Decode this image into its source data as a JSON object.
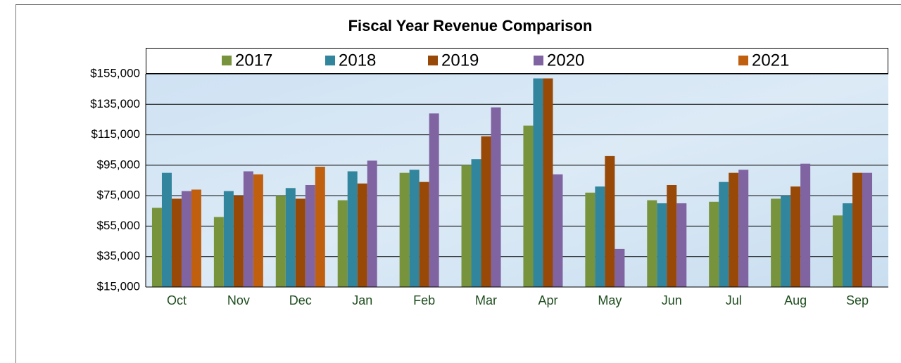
{
  "chart_data": {
    "type": "bar",
    "title": "Fiscal Year Revenue Comparison",
    "categories": [
      "Oct",
      "Nov",
      "Dec",
      "Jan",
      "Feb",
      "Mar",
      "Apr",
      "May",
      "Jun",
      "Jul",
      "Aug",
      "Sep"
    ],
    "series": [
      {
        "name": "2017",
        "color": "#77933c",
        "values": [
          67000,
          61000,
          75000,
          72000,
          90000,
          95000,
          121000,
          77000,
          72000,
          71000,
          73000,
          62000
        ]
      },
      {
        "name": "2018",
        "color": "#31859c",
        "values": [
          90000,
          78000,
          80000,
          91000,
          92000,
          99000,
          152000,
          81000,
          70000,
          84000,
          75000,
          70000
        ]
      },
      {
        "name": "2019",
        "color": "#984807",
        "values": [
          73000,
          75000,
          73000,
          83000,
          84000,
          114000,
          152000,
          101000,
          82000,
          90000,
          81000,
          90000
        ]
      },
      {
        "name": "2020",
        "color": "#8064a2",
        "values": [
          78000,
          91000,
          82000,
          98000,
          129000,
          133000,
          89000,
          40000,
          70000,
          92000,
          96000,
          90000
        ]
      },
      {
        "name": "2021",
        "color": "#c0600f",
        "values": [
          79000,
          89000,
          94000,
          null,
          null,
          null,
          null,
          null,
          null,
          null,
          null,
          null
        ]
      }
    ],
    "ylim": [
      15000,
      155000
    ],
    "yticks": [
      {
        "value": 15000,
        "label": "$15,000"
      },
      {
        "value": 35000,
        "label": "$35,000"
      },
      {
        "value": 55000,
        "label": "$55,000"
      },
      {
        "value": 75000,
        "label": "$75,000"
      },
      {
        "value": 95000,
        "label": "$95,000"
      },
      {
        "value": 115000,
        "label": "$115,000"
      },
      {
        "value": 135000,
        "label": "$135,000"
      },
      {
        "value": 155000,
        "label": "$155,000"
      }
    ],
    "grid": true
  }
}
